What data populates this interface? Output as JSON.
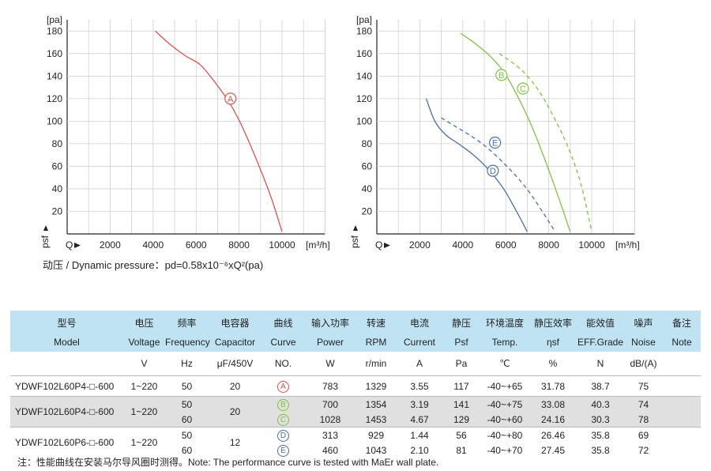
{
  "chart_data": [
    {
      "type": "line",
      "ylabel_unit": "[pa]",
      "xlabel_unit": "[m³/h]",
      "y_axis_symbol": "psf",
      "x_axis_symbol": "Q",
      "xlim": [
        0,
        11000
      ],
      "ylim": [
        0,
        190
      ],
      "x_ticks": [
        2000,
        4000,
        6000,
        8000,
        10000
      ],
      "y_ticks": [
        20,
        40,
        60,
        80,
        100,
        120,
        140,
        160,
        180
      ],
      "grid": true,
      "series": [
        {
          "name": "A",
          "color": "#d9534f",
          "dashed": false,
          "x": [
            4100,
            4800,
            5500,
            6200,
            6900,
            7500,
            8000,
            8500,
            9000,
            9500,
            10000
          ],
          "y": [
            180,
            168,
            158,
            150,
            134,
            118,
            101,
            80,
            57,
            32,
            2
          ],
          "label_at": [
            7600,
            120
          ]
        }
      ]
    },
    {
      "type": "line",
      "ylabel_unit": "[pa]",
      "xlabel_unit": "[m³/h]",
      "y_axis_symbol": "psf",
      "x_axis_symbol": "Q",
      "xlim": [
        0,
        11000
      ],
      "ylim": [
        0,
        190
      ],
      "x_ticks": [
        2000,
        4000,
        6000,
        8000,
        10000
      ],
      "y_ticks": [
        20,
        40,
        60,
        80,
        100,
        120,
        140,
        160,
        180
      ],
      "grid": true,
      "series": [
        {
          "name": "B",
          "color": "#7dc242",
          "dashed": false,
          "x": [
            3900,
            4500,
            5200,
            5900,
            6500,
            7200,
            7900,
            8500,
            9000
          ],
          "y": [
            178,
            170,
            159,
            144,
            124,
            96,
            62,
            30,
            2
          ],
          "label_at": [
            5800,
            141
          ]
        },
        {
          "name": "C",
          "color": "#7dc242",
          "dashed": true,
          "x": [
            5700,
            6700,
            7500,
            8200,
            8900,
            9500,
            10000
          ],
          "y": [
            160,
            146,
            128,
            105,
            77,
            44,
            2
          ],
          "label_at": [
            6800,
            129
          ]
        },
        {
          "name": "D",
          "color": "#4a6fa5",
          "dashed": false,
          "x": [
            2300,
            2700,
            3200,
            3800,
            4500,
            5200,
            5900,
            6500,
            7000
          ],
          "y": [
            120,
            100,
            88,
            80,
            70,
            57,
            40,
            20,
            2
          ],
          "label_at": [
            5400,
            56
          ]
        },
        {
          "name": "E",
          "color": "#4a6fa5",
          "dashed": true,
          "x": [
            3000,
            3600,
            4300,
            5100,
            6000,
            6900,
            7700,
            8300
          ],
          "y": [
            103,
            96,
            88,
            77,
            61,
            42,
            20,
            2
          ],
          "label_at": [
            5500,
            81
          ]
        }
      ]
    }
  ],
  "dynamic_pressure_text": "动压 / Dynamic pressure：pd=0.58x10⁻⁶xQ²(pa)",
  "table": {
    "header_cn": [
      "型号",
      "电压",
      "频率",
      "电容器",
      "曲线",
      "输入功率",
      "转速",
      "电流",
      "静压",
      "环境温度",
      "静压效率",
      "能效值",
      "噪声",
      "备注"
    ],
    "header_en": [
      "Model",
      "Voltage",
      "Frequency",
      "Capacitor",
      "Curve",
      "Power",
      "RPM",
      "Current",
      "Psf",
      "Temp.",
      "ηsf",
      "EFF.Grade",
      "Noise",
      "Note"
    ],
    "units": [
      "",
      "V",
      "Hz",
      "μF/450V",
      "NO.",
      "W",
      "r/min",
      "A",
      "Pa",
      "℃",
      "%",
      "N",
      "dB/(A)",
      ""
    ],
    "groups": [
      {
        "model": "YDWF102L60P4-□-600",
        "voltage": "1~220",
        "capacitor": "20",
        "rows": [
          {
            "hz": "50",
            "curve": "A",
            "curve_color": "#d9534f",
            "power": "783",
            "rpm": "1329",
            "current": "3.55",
            "psf": "117",
            "temp": "-40~+65",
            "eff": "31.78",
            "grade": "38.7",
            "noise": "75",
            "note": ""
          }
        ]
      },
      {
        "model": "YDWF102L60P4-□-600",
        "voltage": "1~220",
        "capacitor": "20",
        "rows": [
          {
            "hz": "50",
            "curve": "B",
            "curve_color": "#7dc242",
            "power": "700",
            "rpm": "1354",
            "current": "3.19",
            "psf": "141",
            "temp": "-40~+75",
            "eff": "33.08",
            "grade": "40.3",
            "noise": "74",
            "note": ""
          },
          {
            "hz": "60",
            "curve": "C",
            "curve_color": "#7dc242",
            "power": "1028",
            "rpm": "1453",
            "current": "4.67",
            "psf": "129",
            "temp": "-40~+60",
            "eff": "24.16",
            "grade": "30.3",
            "noise": "78",
            "note": ""
          }
        ]
      },
      {
        "model": "YDWF102L60P6-□-600",
        "voltage": "1~220",
        "capacitor": "12",
        "rows": [
          {
            "hz": "50",
            "curve": "D",
            "curve_color": "#4a6fa5",
            "power": "313",
            "rpm": "929",
            "current": "1.44",
            "psf": "56",
            "temp": "-40~+80",
            "eff": "26.46",
            "grade": "35.8",
            "noise": "69",
            "note": ""
          },
          {
            "hz": "60",
            "curve": "E",
            "curve_color": "#4a6fa5",
            "power": "460",
            "rpm": "1043",
            "current": "2.10",
            "psf": "81",
            "temp": "-40~+70",
            "eff": "27.45",
            "grade": "35.8",
            "noise": "72",
            "note": ""
          }
        ]
      }
    ]
  },
  "footnote": "注：性能曲线在安装马尔导风圈时测得。Note: The performance curve is tested with MaEr wall plate."
}
